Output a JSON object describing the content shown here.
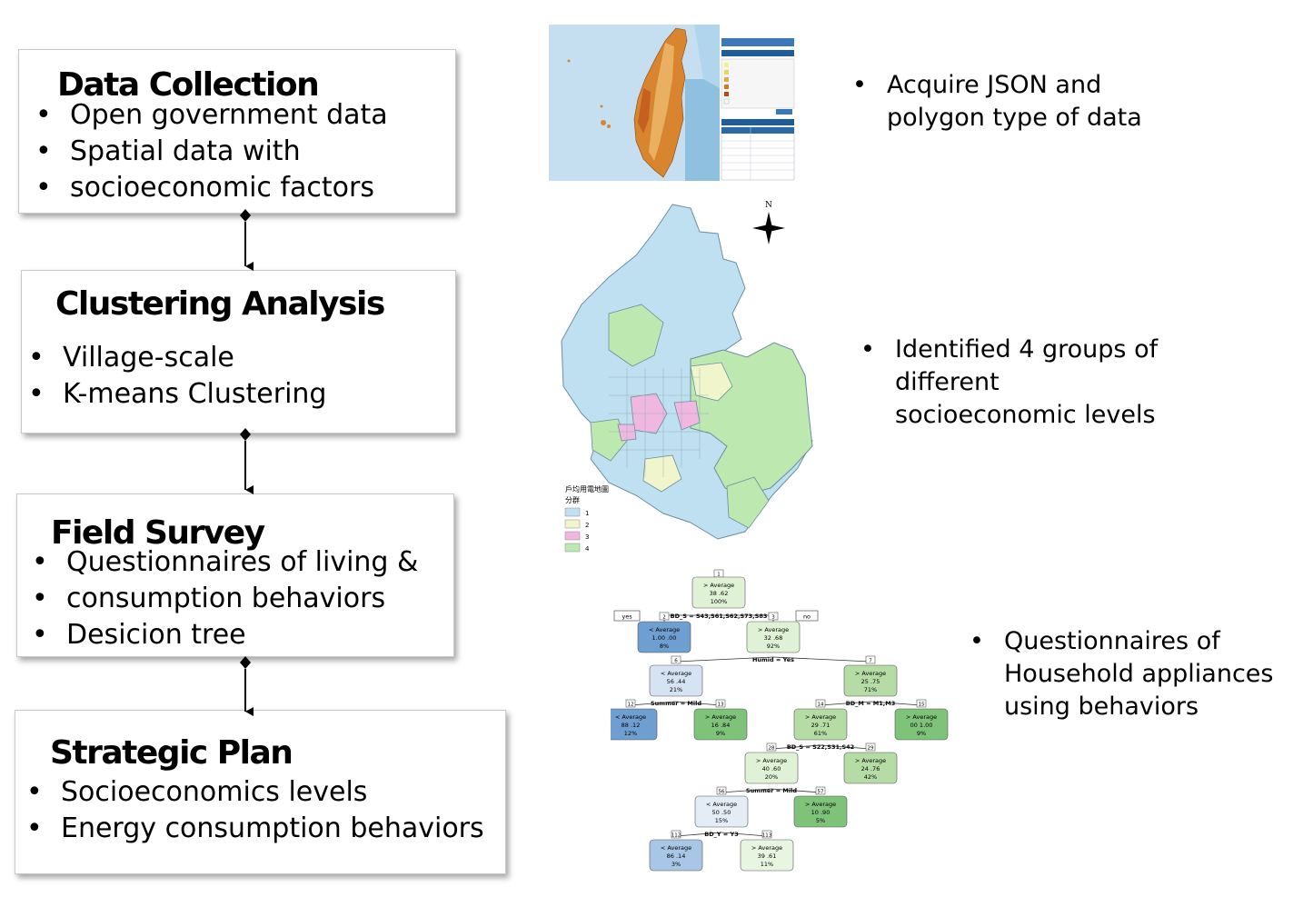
{
  "steps": [
    {
      "title": "Data Collection",
      "bullets": [
        "Open government data",
        "Spatial data with",
        "socioeconomic factors"
      ]
    },
    {
      "title": "Clustering Analysis",
      "bullets": [
        "Village-scale",
        "K-means Clustering"
      ]
    },
    {
      "title": "Field Survey",
      "bullets": [
        "Questionnaires of living &",
        "consumption behaviors",
        "Desicion tree"
      ]
    },
    {
      "title": "Strategic Plan",
      "bullets": [
        "Socioeconomics levels",
        "Energy consumption behaviors"
      ]
    }
  ],
  "notes": [
    {
      "lines": [
        "Acquire JSON and",
        "polygon type of data"
      ]
    },
    {
      "lines": [
        "Identified 4 groups of",
        "different",
        "socioeconomic levels"
      ]
    },
    {
      "lines": [
        "Questionnaires of",
        "Household appliances",
        "using behaviors"
      ]
    }
  ],
  "cluster_map": {
    "north_label": "N",
    "legend_title": "戶均用電地圖",
    "legend_subtitle": "分群",
    "legend_items": [
      "1",
      "2",
      "3",
      "4"
    ],
    "colors": [
      "#bfe0f0",
      "#f0f5cc",
      "#f0b8e0",
      "#bde8b0"
    ]
  },
  "tree": {
    "colors": {
      "blue_dark": "#6f9fd0",
      "blue_light": "#d5e3f2",
      "green_light": "#e0f2d6",
      "green_mid": "#b5dca5",
      "green_dark": "#7fc27a"
    },
    "nodes": [
      {
        "id": "1",
        "label": "> Average",
        "vals": "38 .62",
        "pct": "100%"
      },
      {
        "id": "2",
        "label": "< Average",
        "vals": "1.00 .00",
        "pct": "8%"
      },
      {
        "id": "3",
        "label": "> Average",
        "vals": "32 .68",
        "pct": "92%"
      },
      {
        "id": "6",
        "label": "< Average",
        "vals": "56 .44",
        "pct": "21%"
      },
      {
        "id": "7",
        "label": "> Average",
        "vals": "25 .75",
        "pct": "71%"
      },
      {
        "id": "12",
        "label": "< Average",
        "vals": "88 .12",
        "pct": "12%"
      },
      {
        "id": "13",
        "label": "> Average",
        "vals": "16 .84",
        "pct": "9%"
      },
      {
        "id": "14",
        "label": "> Average",
        "vals": "29 .71",
        "pct": "61%"
      },
      {
        "id": "15",
        "label": "> Average",
        "vals": "00 1.00",
        "pct": "9%"
      },
      {
        "id": "28",
        "label": "> Average",
        "vals": "40 .60",
        "pct": "20%"
      },
      {
        "id": "29",
        "label": "> Average",
        "vals": "24 .76",
        "pct": "42%"
      },
      {
        "id": "56",
        "label": "< Average",
        "vals": "50 .50",
        "pct": "15%"
      },
      {
        "id": "57",
        "label": "> Average",
        "vals": "10 .90",
        "pct": "5%"
      },
      {
        "id": "112",
        "label": "< Average",
        "vals": "86 .14",
        "pct": "3%"
      },
      {
        "id": "113",
        "label": "> Average",
        "vals": "39 .61",
        "pct": "11%"
      }
    ],
    "splits": [
      "BD_S = S43,S61,S62,S73,S83",
      "Humid = Yes",
      "Summer = Mild",
      "BD_M = M1,M3",
      "BD_S = S22,S31,S42",
      "Summer = Mild",
      "BD_Y = Y3"
    ],
    "branch_labels": [
      "yes",
      "no"
    ]
  }
}
